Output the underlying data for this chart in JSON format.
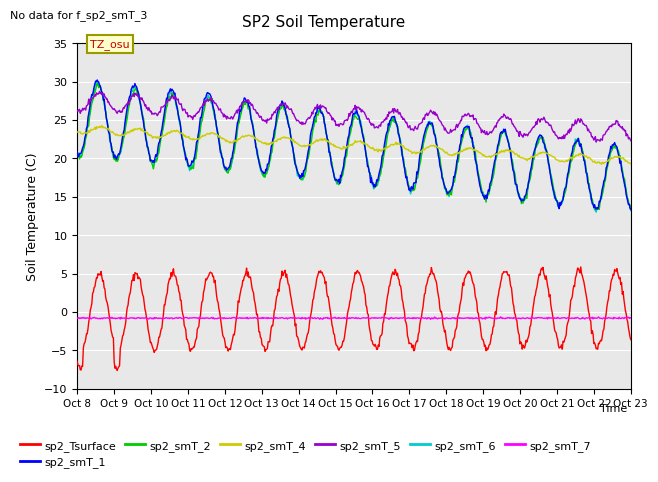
{
  "title": "SP2 Soil Temperature",
  "no_data_text": "No data for f_sp2_smT_3",
  "tz_label": "TZ_osu",
  "ylabel": "Soil Temperature (C)",
  "xlabel": "Time",
  "xlim": [
    0,
    15
  ],
  "ylim": [
    -10,
    35
  ],
  "yticks": [
    -10,
    -5,
    0,
    5,
    10,
    15,
    20,
    25,
    30,
    35
  ],
  "xtick_labels": [
    "Oct 8",
    "Oct 9",
    "Oct 10",
    "Oct 11",
    "Oct 12",
    "Oct 13",
    "Oct 14",
    "Oct 15",
    "Oct 16",
    "Oct 17",
    "Oct 18",
    "Oct 19",
    "Oct 20",
    "Oct 21",
    "Oct 22",
    "Oct 23"
  ],
  "bg_color": "#e8e8e8",
  "colors": {
    "sp2_Tsurface": "#ff0000",
    "sp2_smT_1": "#0000ff",
    "sp2_smT_2": "#00cc00",
    "sp2_smT_4": "#cccc00",
    "sp2_smT_5": "#9900cc",
    "sp2_smT_6": "#00cccc",
    "sp2_smT_7": "#ff00ff"
  },
  "n_days": 15,
  "pts_per_day": 48
}
